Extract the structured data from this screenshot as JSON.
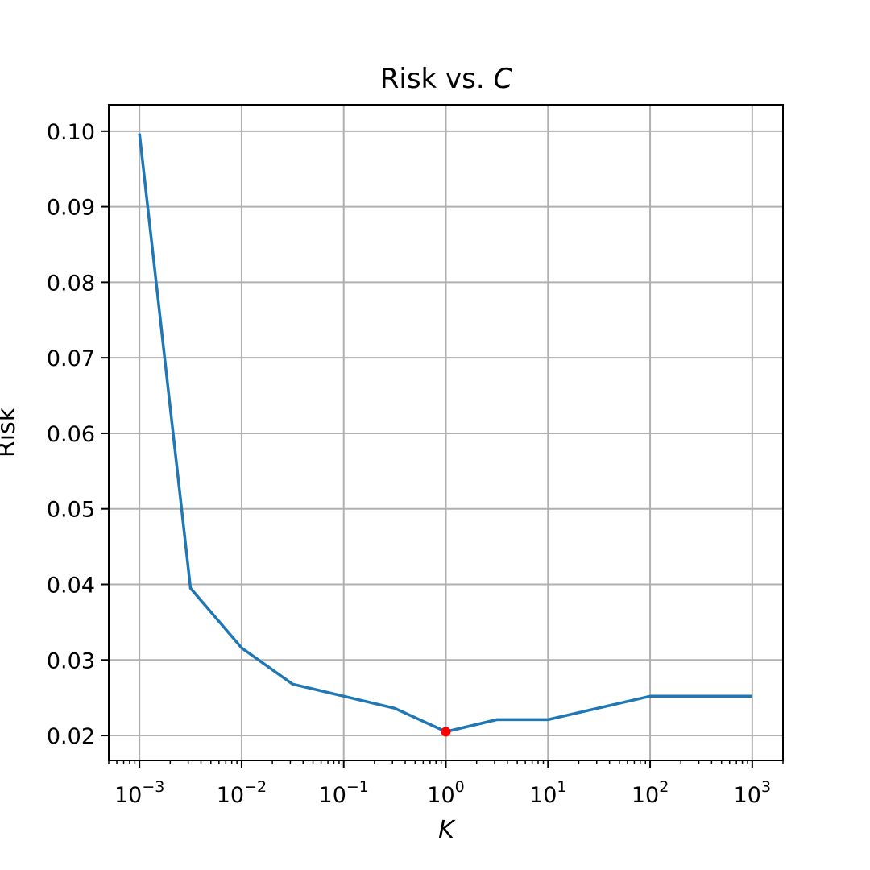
{
  "chart_data": {
    "type": "line",
    "title": "Risk vs. ",
    "title_italic": "C",
    "xlabel": "K",
    "ylabel": "Risk",
    "xscale": "log",
    "xlim": [
      0.0005,
      2000
    ],
    "ylim": [
      0.0167,
      0.1035
    ],
    "grid": true,
    "x_ticks": [
      {
        "base": "10",
        "exp": "−3"
      },
      {
        "base": "10",
        "exp": "−2"
      },
      {
        "base": "10",
        "exp": "−1"
      },
      {
        "base": "10",
        "exp": "0"
      },
      {
        "base": "10",
        "exp": "1"
      },
      {
        "base": "10",
        "exp": "2"
      },
      {
        "base": "10",
        "exp": "3"
      }
    ],
    "x_tick_values": [
      0.001,
      0.01,
      0.1,
      1,
      10,
      100,
      1000
    ],
    "y_ticks": [
      "0.02",
      "0.03",
      "0.04",
      "0.05",
      "0.06",
      "0.07",
      "0.08",
      "0.09",
      "0.10"
    ],
    "y_tick_values": [
      0.02,
      0.03,
      0.04,
      0.05,
      0.06,
      0.07,
      0.08,
      0.09,
      0.1
    ],
    "series": [
      {
        "color": "#1f77b4",
        "x": [
          0.001,
          0.00316,
          0.01,
          0.0316,
          0.316,
          1,
          3.16,
          10,
          100,
          1000
        ],
        "y": [
          0.0997,
          0.0395,
          0.0316,
          0.0268,
          0.0236,
          0.0205,
          0.0221,
          0.0221,
          0.0252,
          0.0252
        ]
      }
    ],
    "highlight_point": {
      "x": 1,
      "y": 0.0205,
      "color": "#ff0000"
    }
  }
}
